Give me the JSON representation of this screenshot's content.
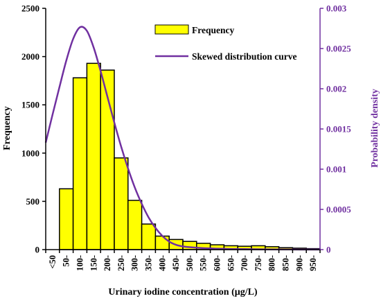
{
  "chart_data": {
    "type": "bar",
    "title": "",
    "xlabel": "Urinary iodine concentration (μg/L)",
    "ylabel": "Frequency",
    "y2label": "Probability density",
    "ylim": [
      0,
      2500
    ],
    "y2lim": [
      0,
      0.003
    ],
    "yticks": [
      "0",
      "500",
      "1000",
      "1500",
      "2000",
      "2500"
    ],
    "y2ticks": [
      "0",
      "0.0005",
      "0.001",
      "0.0015",
      "0.002",
      "0.0025",
      "0.003"
    ],
    "grid": false,
    "legend_position": "top-center",
    "categories": [
      "<50",
      "50-",
      "100-",
      "150-",
      "200-",
      "250-",
      "300-",
      "350-",
      "400-",
      "450-",
      "500-",
      "550-",
      "600-",
      "650-",
      "700-",
      "750-",
      "800-",
      "850-",
      "900-",
      "950-"
    ],
    "series": [
      {
        "name": "Frequency",
        "type": "bar",
        "axis": "left",
        "color": "#ffff00",
        "values": [
          0,
          630,
          1780,
          1930,
          1860,
          950,
          510,
          265,
          140,
          105,
          85,
          65,
          50,
          40,
          35,
          40,
          30,
          20,
          15,
          10
        ]
      },
      {
        "name": "Skewed distribution curve",
        "type": "line",
        "axis": "right",
        "color": "#7030a0",
        "x": [
          -0.5,
          0,
          0.5,
          1,
          1.5,
          2,
          2.5,
          3,
          3.5,
          4,
          4.5,
          5,
          5.5,
          6,
          6.5,
          7,
          7.5,
          8,
          8.5,
          9,
          9.5,
          10,
          11,
          12,
          13,
          14,
          15,
          16,
          17,
          18,
          19,
          19.5
        ],
        "values": [
          0.00133,
          0.00168,
          0.00202,
          0.00235,
          0.00262,
          0.002765,
          0.00272,
          0.00251,
          0.00222,
          0.0019,
          0.00158,
          0.00128,
          0.00101,
          0.00077,
          0.00057,
          0.0004,
          0.00027,
          0.00017,
          0.0001,
          6e-05,
          4e-05,
          3e-05,
          1.8e-05,
          1.2e-05,
          8e-06,
          6e-06,
          4e-06,
          3e-06,
          2e-06,
          1e-06,
          1e-06,
          1e-06
        ]
      }
    ]
  },
  "colors": {
    "axis": "#000000",
    "bar_fill": "#ffff00",
    "bar_stroke": "#000000",
    "curve": "#7030a0",
    "right_axis": "#7030a0"
  }
}
